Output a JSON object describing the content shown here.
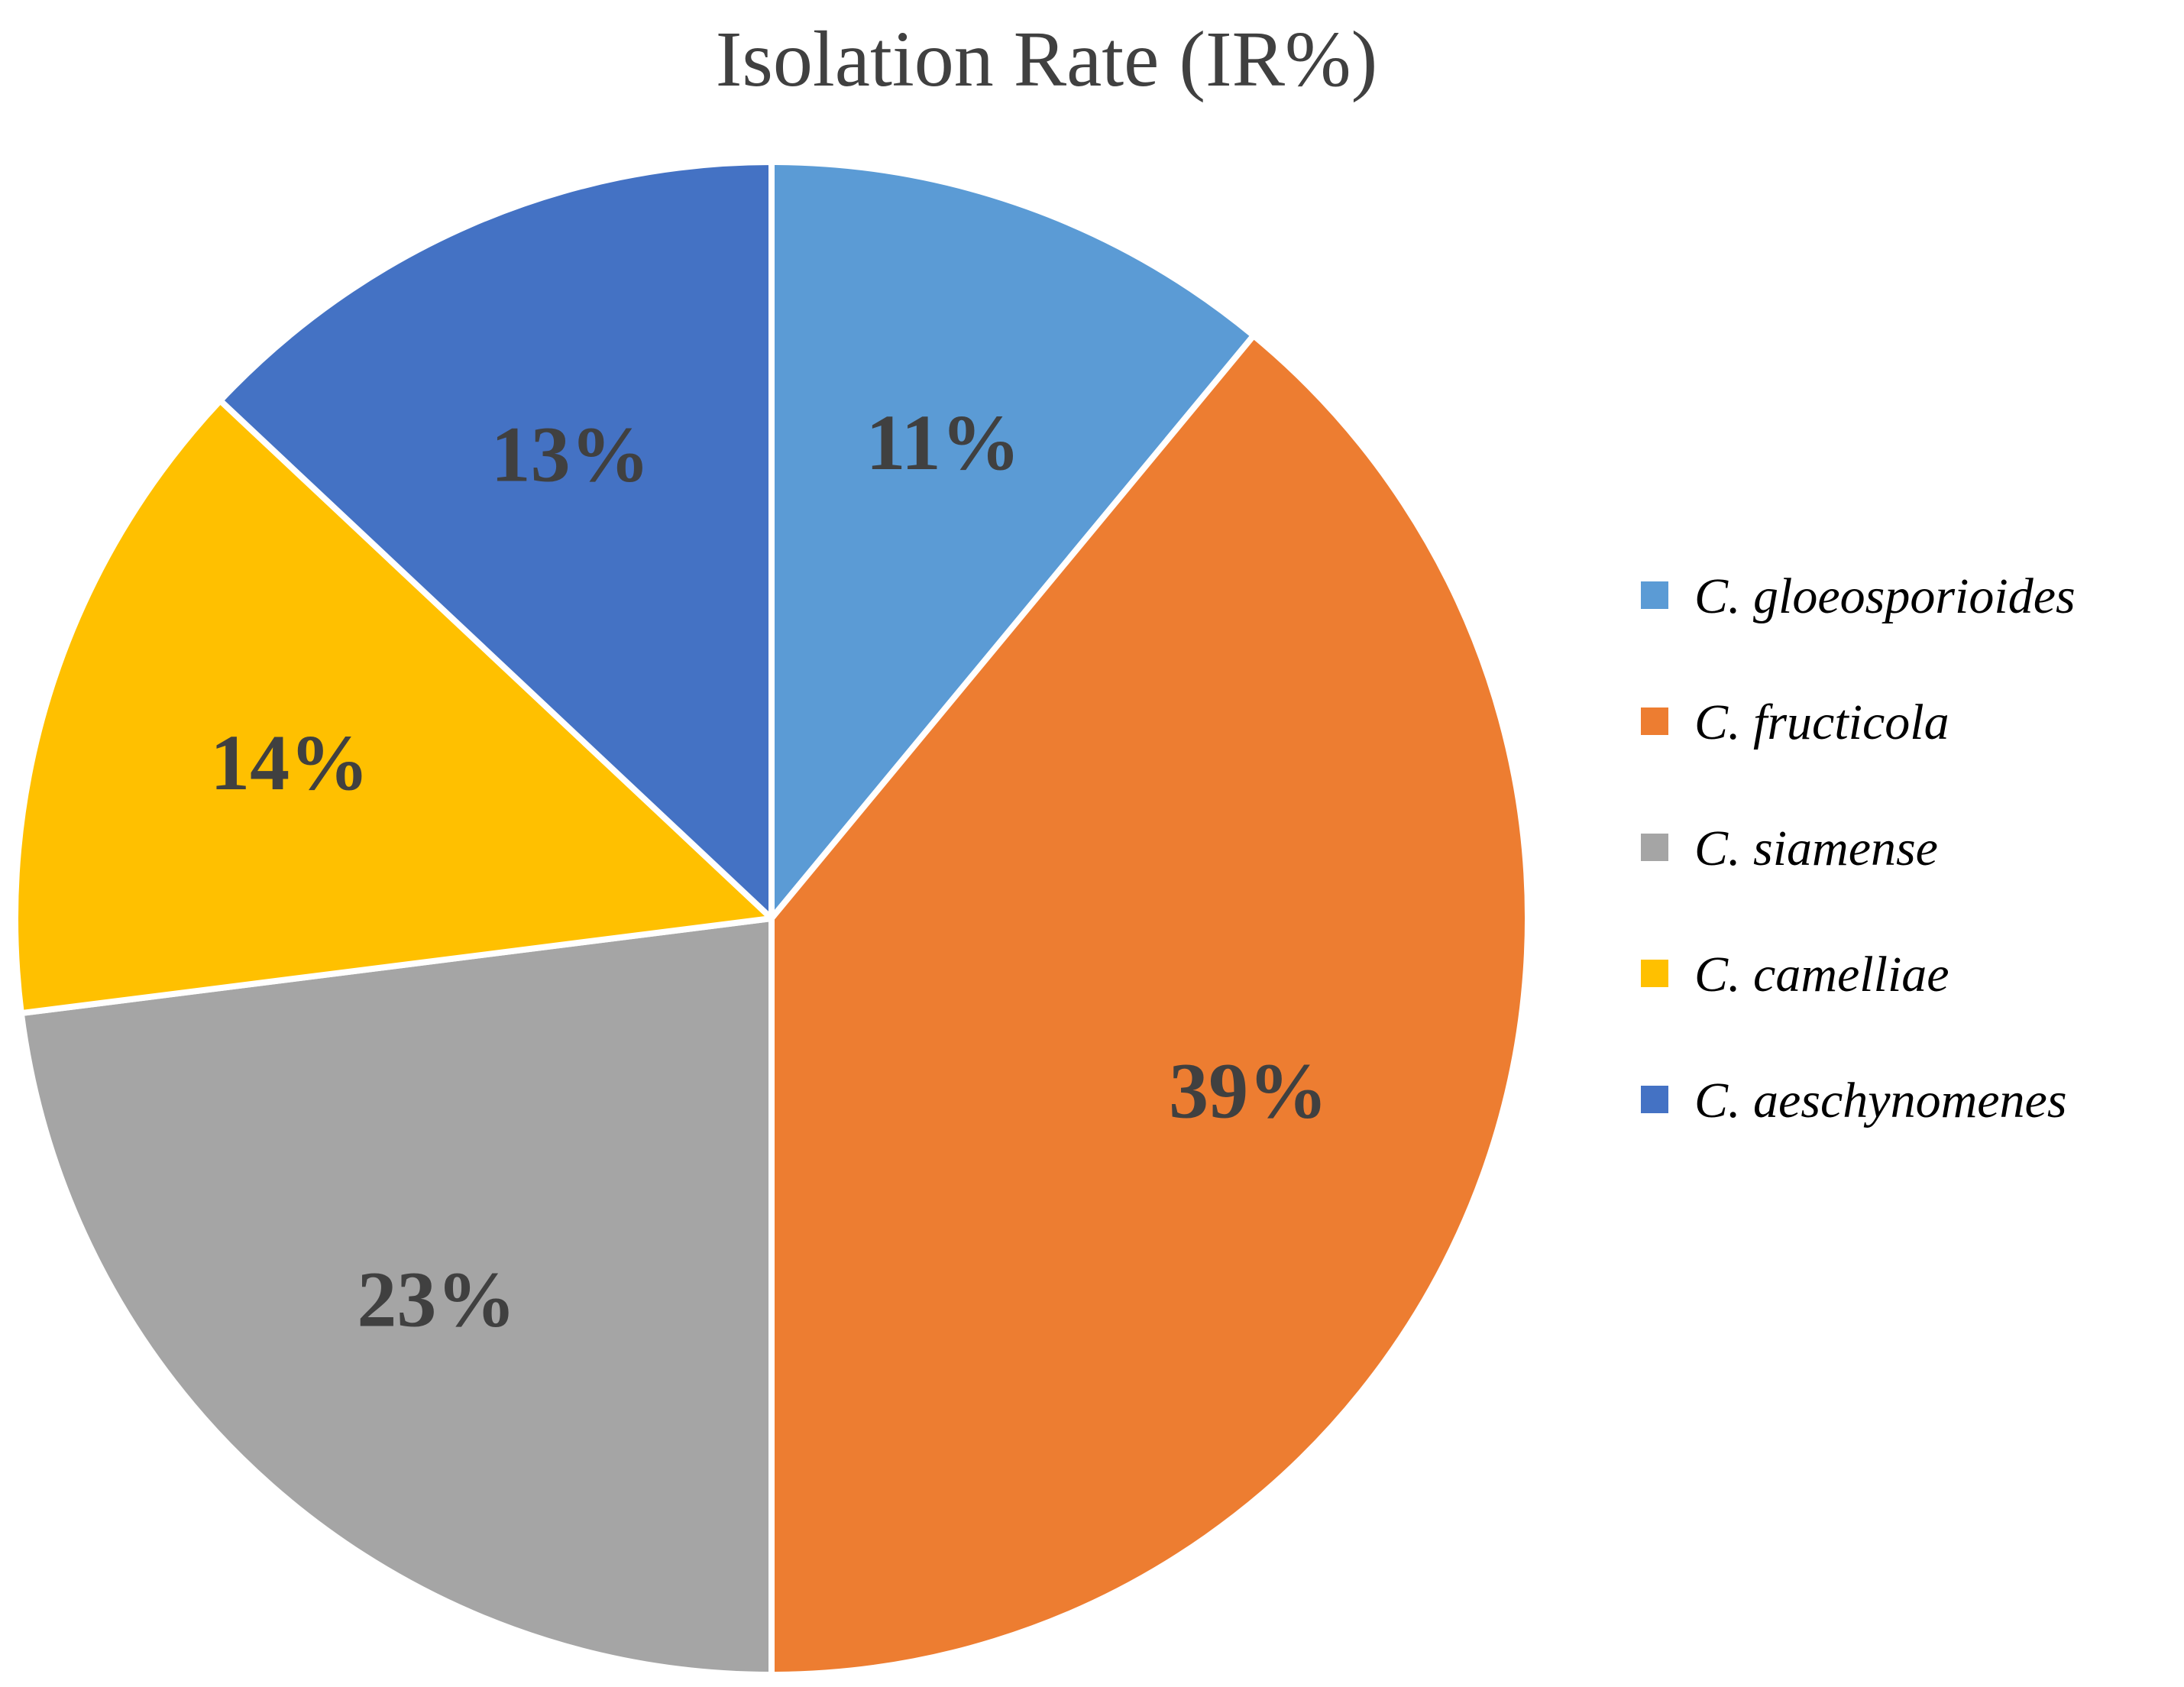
{
  "chart_data": {
    "type": "pie",
    "title": "Isolation Rate (IR%)",
    "start_angle_deg": 0,
    "direction": "clockwise",
    "legend_position": "right",
    "slices": [
      {
        "label": "C. gloeosporioides",
        "value": 11,
        "value_label": "11%",
        "color": "#5B9BD5"
      },
      {
        "label": "C. fructicola",
        "value": 39,
        "value_label": "39%",
        "color": "#ED7D31"
      },
      {
        "label": "C. siamense",
        "value": 23,
        "value_label": "23%",
        "color": "#A5A5A5"
      },
      {
        "label": "C. camelliae",
        "value": 14,
        "value_label": "14%",
        "color": "#FFC000"
      },
      {
        "label": "C. aeschynomenes",
        "value": 13,
        "value_label": "13%",
        "color": "#4472C4"
      }
    ]
  }
}
